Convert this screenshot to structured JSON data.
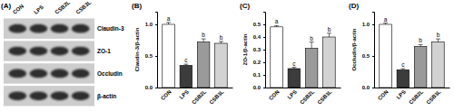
{
  "blot": {
    "title": "(A)",
    "lanes": [
      "CON",
      "LPS",
      "CSB2L",
      "CSB3L"
    ],
    "proteins": [
      "Claudin-3",
      "ZO-1",
      "Occludin",
      "β-actin"
    ]
  },
  "chart_data": [
    {
      "type": "bar",
      "title": "(B)",
      "y_label": "Claudin-3/β-actin",
      "categories": [
        "CON",
        "LPS",
        "CSB2L",
        "CSB3L"
      ],
      "values": [
        1.0,
        0.35,
        0.72,
        0.7
      ],
      "errors": [
        0.03,
        0.02,
        0.05,
        0.03
      ],
      "annotations": [
        "a",
        "c",
        "b",
        "b"
      ],
      "colors": [
        "#ffffff",
        "#3c3c3c",
        "#9a9a9a",
        "#d2d2d2"
      ],
      "ylim": [
        0,
        1.2
      ],
      "yticks": [
        {
          "value": 0,
          "label": "0.0"
        },
        0.5,
        {
          "value": 1,
          "label": "1.0"
        }
      ]
    },
    {
      "type": "bar",
      "title": "(C)",
      "y_label": "ZO-1/β-actin",
      "categories": [
        "CON",
        "LPS",
        "CSB2L",
        "CSB3L"
      ],
      "values": [
        0.48,
        0.15,
        0.31,
        0.4
      ],
      "errors": [
        0.01,
        0.01,
        0.05,
        0.03
      ],
      "annotations": [
        "a",
        "c",
        "b",
        "b"
      ],
      "colors": [
        "#ffffff",
        "#3c3c3c",
        "#9a9a9a",
        "#d2d2d2"
      ],
      "ylim": [
        0,
        0.6
      ],
      "yticks": [
        {
          "value": 0,
          "label": "0.0"
        },
        0.1,
        0.2,
        0.3,
        0.4,
        0.5
      ]
    },
    {
      "type": "bar",
      "title": "(D)",
      "y_label": "Occludin/β-actin",
      "categories": [
        "CON",
        "LPS",
        "CSB2L",
        "CSB3L"
      ],
      "values": [
        1.0,
        0.28,
        0.65,
        0.72
      ],
      "errors": [
        0.02,
        0.02,
        0.03,
        0.05
      ],
      "annotations": [
        "a",
        "c",
        "b",
        "b"
      ],
      "colors": [
        "#ffffff",
        "#3c3c3c",
        "#9a9a9a",
        "#d2d2d2"
      ],
      "ylim": [
        0,
        1.2
      ],
      "yticks": [
        {
          "value": 0,
          "label": "0.0"
        },
        0.5,
        {
          "value": 1,
          "label": "1.0"
        }
      ]
    }
  ]
}
